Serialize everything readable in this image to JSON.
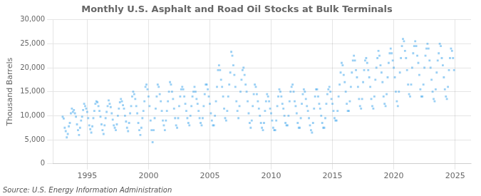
{
  "chart_data": {
    "type": "scatter",
    "title": "Monthly U.S. Asphalt and Road Oil Stocks at Bulk Terminals",
    "ylabel": "Thousand Barrels",
    "annotations": [
      "Source: U.S. Energy Information Administration"
    ],
    "marker": "square",
    "grid": true,
    "xlim": [
      1992.2,
      2026.3
    ],
    "xticks": [
      1995,
      2000,
      2005,
      2010,
      2015,
      2020,
      2025
    ],
    "ylim": [
      0,
      30000
    ],
    "yticks": [
      0,
      {
        "value": 5000,
        "label": "5,000"
      },
      {
        "value": 10000,
        "label": "10,000"
      },
      {
        "value": 15000,
        "label": "15,000"
      },
      {
        "value": 20000,
        "label": "20,000"
      },
      {
        "value": 25000,
        "label": "25,000"
      },
      {
        "value": 30000,
        "label": "30,000"
      }
    ],
    "x": [
      1993.0,
      1993.083,
      1993.167,
      1993.25,
      1993.333,
      1993.417,
      1993.5,
      1993.583,
      1993.667,
      1993.75,
      1993.833,
      1993.917,
      1994.0,
      1994.083,
      1994.167,
      1994.25,
      1994.333,
      1994.417,
      1994.5,
      1994.583,
      1994.667,
      1994.75,
      1994.833,
      1994.917,
      1995.0,
      1995.083,
      1995.167,
      1995.25,
      1995.333,
      1995.417,
      1995.5,
      1995.583,
      1995.667,
      1995.75,
      1995.833,
      1995.917,
      1996.0,
      1996.083,
      1996.167,
      1996.25,
      1996.333,
      1996.417,
      1996.5,
      1996.583,
      1996.667,
      1996.75,
      1996.833,
      1996.917,
      1997.0,
      1997.083,
      1997.167,
      1997.25,
      1997.333,
      1997.417,
      1997.5,
      1997.583,
      1997.667,
      1997.75,
      1997.833,
      1997.917,
      1998.0,
      1998.083,
      1998.167,
      1998.25,
      1998.333,
      1998.417,
      1998.5,
      1998.583,
      1998.667,
      1998.75,
      1998.833,
      1998.917,
      1999.0,
      1999.083,
      1999.167,
      1999.25,
      1999.333,
      1999.417,
      1999.5,
      1999.583,
      1999.667,
      1999.75,
      1999.833,
      1999.917,
      2000.0,
      2000.083,
      2000.167,
      2000.25,
      2000.333,
      2000.417,
      2000.5,
      2000.583,
      2000.667,
      2000.75,
      2000.833,
      2000.917,
      2001.0,
      2001.083,
      2001.167,
      2001.25,
      2001.333,
      2001.417,
      2001.5,
      2001.583,
      2001.667,
      2001.75,
      2001.833,
      2001.917,
      2002.0,
      2002.083,
      2002.167,
      2002.25,
      2002.333,
      2002.417,
      2002.5,
      2002.583,
      2002.667,
      2002.75,
      2002.833,
      2002.917,
      2003.0,
      2003.083,
      2003.167,
      2003.25,
      2003.333,
      2003.417,
      2003.5,
      2003.583,
      2003.667,
      2003.75,
      2003.833,
      2003.917,
      2004.0,
      2004.083,
      2004.167,
      2004.25,
      2004.333,
      2004.417,
      2004.5,
      2004.583,
      2004.667,
      2004.75,
      2004.833,
      2004.917,
      2005.0,
      2005.083,
      2005.167,
      2005.25,
      2005.333,
      2005.417,
      2005.5,
      2005.583,
      2005.667,
      2005.75,
      2005.833,
      2005.917,
      2006.0,
      2006.083,
      2006.167,
      2006.25,
      2006.333,
      2006.417,
      2006.5,
      2006.583,
      2006.667,
      2006.75,
      2006.833,
      2006.917,
      2007.0,
      2007.083,
      2007.167,
      2007.25,
      2007.333,
      2007.417,
      2007.5,
      2007.583,
      2007.667,
      2007.75,
      2007.833,
      2007.917,
      2008.0,
      2008.083,
      2008.167,
      2008.25,
      2008.333,
      2008.417,
      2008.5,
      2008.583,
      2008.667,
      2008.75,
      2008.833,
      2008.917,
      2009.0,
      2009.083,
      2009.167,
      2009.25,
      2009.333,
      2009.417,
      2009.5,
      2009.583,
      2009.667,
      2009.75,
      2009.833,
      2009.917,
      2010.0,
      2010.083,
      2010.167,
      2010.25,
      2010.333,
      2010.417,
      2010.5,
      2010.583,
      2010.667,
      2010.75,
      2010.833,
      2010.917,
      2011.0,
      2011.083,
      2011.167,
      2011.25,
      2011.333,
      2011.417,
      2011.5,
      2011.583,
      2011.667,
      2011.75,
      2011.833,
      2011.917,
      2012.0,
      2012.083,
      2012.167,
      2012.25,
      2012.333,
      2012.417,
      2012.5,
      2012.583,
      2012.667,
      2012.75,
      2012.833,
      2012.917,
      2013.0,
      2013.083,
      2013.167,
      2013.25,
      2013.333,
      2013.417,
      2013.5,
      2013.583,
      2013.667,
      2013.75,
      2013.833,
      2013.917,
      2014.0,
      2014.083,
      2014.167,
      2014.25,
      2014.333,
      2014.417,
      2014.5,
      2014.583,
      2014.667,
      2014.75,
      2014.833,
      2014.917,
      2015.0,
      2015.083,
      2015.167,
      2015.25,
      2015.333,
      2015.417,
      2015.5,
      2015.583,
      2015.667,
      2015.75,
      2015.833,
      2015.917,
      2016.0,
      2016.083,
      2016.167,
      2016.25,
      2016.333,
      2016.417,
      2016.5,
      2016.583,
      2016.667,
      2016.75,
      2016.833,
      2016.917,
      2017.0,
      2017.083,
      2017.167,
      2017.25,
      2017.333,
      2017.417,
      2017.5,
      2017.583,
      2017.667,
      2017.75,
      2017.833,
      2017.917,
      2018.0,
      2018.083,
      2018.167,
      2018.25,
      2018.333,
      2018.417,
      2018.5,
      2018.583,
      2018.667,
      2018.75,
      2018.833,
      2018.917,
      2019.0,
      2019.083,
      2019.167,
      2019.25,
      2019.333,
      2019.417,
      2019.5,
      2019.583,
      2019.667,
      2019.75,
      2019.833,
      2019.917,
      2020.0,
      2020.083,
      2020.167,
      2020.25,
      2020.333,
      2020.417,
      2020.5,
      2020.583,
      2020.667,
      2020.75,
      2020.833,
      2020.917,
      2021.0,
      2021.083,
      2021.167,
      2021.25,
      2021.333,
      2021.417,
      2021.5,
      2021.583,
      2021.667,
      2021.75,
      2021.833,
      2021.917,
      2022.0,
      2022.083,
      2022.167,
      2022.25,
      2022.333,
      2022.417,
      2022.5,
      2022.583,
      2022.667,
      2022.75,
      2022.833,
      2022.917,
      2023.0,
      2023.083,
      2023.167,
      2023.25,
      2023.333,
      2023.417,
      2023.5,
      2023.583,
      2023.667,
      2023.75,
      2023.833,
      2023.917,
      2024.0,
      2024.083,
      2024.167,
      2024.25,
      2024.333,
      2024.417,
      2024.5,
      2024.583,
      2024.667,
      2024.75,
      2024.833,
      2024.917
    ],
    "values": [
      9800,
      9400,
      7500,
      6800,
      5500,
      6200,
      7800,
      8500,
      10500,
      11500,
      10800,
      11200,
      10500,
      9800,
      8200,
      7000,
      6000,
      7500,
      9000,
      9800,
      11200,
      12500,
      12000,
      11500,
      10800,
      9500,
      8000,
      7200,
      6500,
      7800,
      9500,
      11000,
      12500,
      13000,
      12800,
      12000,
      11000,
      9800,
      8200,
      7000,
      6200,
      8000,
      9500,
      10800,
      12000,
      13200,
      12500,
      11800,
      10500,
      9200,
      8000,
      7500,
      7000,
      8200,
      10000,
      11500,
      12800,
      13500,
      13000,
      12200,
      11500,
      10000,
      8800,
      7500,
      6800,
      8500,
      10500,
      12000,
      14000,
      15000,
      14500,
      13500,
      12000,
      10500,
      8500,
      7000,
      6000,
      7500,
      9500,
      11000,
      13000,
      16000,
      16500,
      15500,
      14000,
      12000,
      9000,
      7000,
      4500,
      7000,
      9500,
      11500,
      14000,
      16500,
      16000,
      14500,
      13000,
      11000,
      9000,
      8000,
      7000,
      9000,
      11000,
      13000,
      15000,
      17000,
      16500,
      15000,
      13500,
      11500,
      9500,
      8000,
      7500,
      9500,
      12000,
      14000,
      15500,
      16000,
      15500,
      14000,
      12500,
      11000,
      9500,
      8500,
      8000,
      10000,
      12000,
      14000,
      15000,
      16000,
      15000,
      13500,
      12500,
      11000,
      9500,
      8500,
      8000,
      9500,
      12000,
      14500,
      16500,
      16500,
      15500,
      14000,
      12500,
      10500,
      9000,
      8000,
      8000,
      10000,
      13000,
      16000,
      19500,
      20500,
      19500,
      17500,
      16000,
      14000,
      11500,
      9500,
      9000,
      11000,
      14000,
      16500,
      19000,
      23300,
      22500,
      20500,
      18500,
      16000,
      13000,
      11000,
      9500,
      12000,
      15000,
      17500,
      19500,
      20000,
      18500,
      16500,
      15000,
      13000,
      10500,
      8500,
      7500,
      9000,
      12000,
      14500,
      16500,
      16000,
      14500,
      13000,
      11500,
      10000,
      8500,
      7500,
      7000,
      8500,
      11000,
      13000,
      14500,
      14000,
      13000,
      11500,
      10500,
      9000,
      7500,
      7000,
      7000,
      9000,
      12000,
      14000,
      15500,
      15000,
      14000,
      12500,
      11500,
      10000,
      8500,
      8000,
      8000,
      10000,
      13000,
      15000,
      16000,
      16500,
      15000,
      13000,
      12000,
      10500,
      8500,
      7500,
      7500,
      9500,
      12500,
      14500,
      15500,
      15000,
      13500,
      12000,
      11000,
      9500,
      8000,
      7000,
      6500,
      8500,
      11500,
      14000,
      15500,
      15500,
      14000,
      12500,
      11500,
      10000,
      8500,
      7500,
      7500,
      9500,
      12500,
      14500,
      15500,
      16000,
      15000,
      13500,
      12500,
      11000,
      9500,
      9000,
      9000,
      11000,
      14000,
      16500,
      19000,
      21000,
      20500,
      18500,
      17000,
      15000,
      12500,
      11000,
      11000,
      13000,
      16000,
      19000,
      21500,
      22500,
      21500,
      19500,
      18000,
      16000,
      13500,
      12000,
      11500,
      13500,
      17000,
      19500,
      21500,
      22000,
      21000,
      19500,
      18000,
      16000,
      13500,
      12000,
      11500,
      14000,
      17500,
      20000,
      22000,
      23500,
      22500,
      20500,
      19000,
      17000,
      14000,
      12500,
      12000,
      14500,
      18000,
      21000,
      23000,
      24000,
      23000,
      21500,
      20000,
      18000,
      15000,
      13000,
      12000,
      15000,
      19000,
      22000,
      24500,
      26000,
      25500,
      23500,
      22000,
      19500,
      16500,
      14500,
      14000,
      16500,
      20000,
      23000,
      24500,
      25500,
      24500,
      22500,
      21000,
      18500,
      15500,
      14000,
      14000,
      16500,
      20000,
      22500,
      24000,
      25000,
      24000,
      21500,
      20000,
      17500,
      15000,
      13500,
      13000,
      15500,
      19000,
      21500,
      23000,
      25000,
      24500,
      22000,
      20500,
      18000,
      15500,
      14000,
      13500,
      16000,
      19500,
      22000,
      24000,
      23500,
      22000,
      19500
    ]
  }
}
